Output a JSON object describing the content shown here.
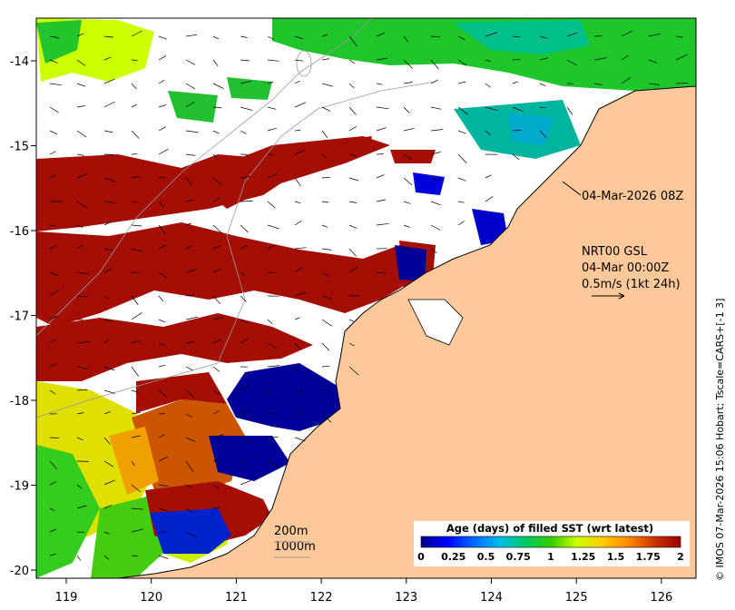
{
  "map": {
    "x_ticks": [
      "119",
      "120",
      "121",
      "122",
      "123",
      "124",
      "125",
      "126"
    ],
    "y_ticks": [
      "-14",
      "-15",
      "-16",
      "-17",
      "-18",
      "-19",
      "-20"
    ],
    "annotations": {
      "timestamp": "04-Mar-2026 08Z",
      "model_name": "NRT00 GSL",
      "model_time": "04-Mar 00:00Z",
      "current_scale": "0.5m/s (1kt 24h)",
      "contour_200": "200m",
      "contour_1000": "1000m"
    },
    "colorbar": {
      "title": "Age (days) of filled SST (wrt latest)",
      "tick_labels": [
        "0",
        "0.25",
        "0.5",
        "0.75",
        "1",
        "1.25",
        "1.5",
        "1.75",
        "2"
      ],
      "colors": [
        "#00008b",
        "#0000ff",
        "#0066ff",
        "#00bbee",
        "#00cc66",
        "#33cc00",
        "#ccff00",
        "#ffcc00",
        "#ff8800",
        "#cc3300",
        "#990000"
      ]
    },
    "credit": "© IMOS 07-Mar-2026 15:06 Hobart; Tscale=CARS+[-1 3]",
    "land_color": "#fdc99a",
    "coast_color": "#000000"
  }
}
